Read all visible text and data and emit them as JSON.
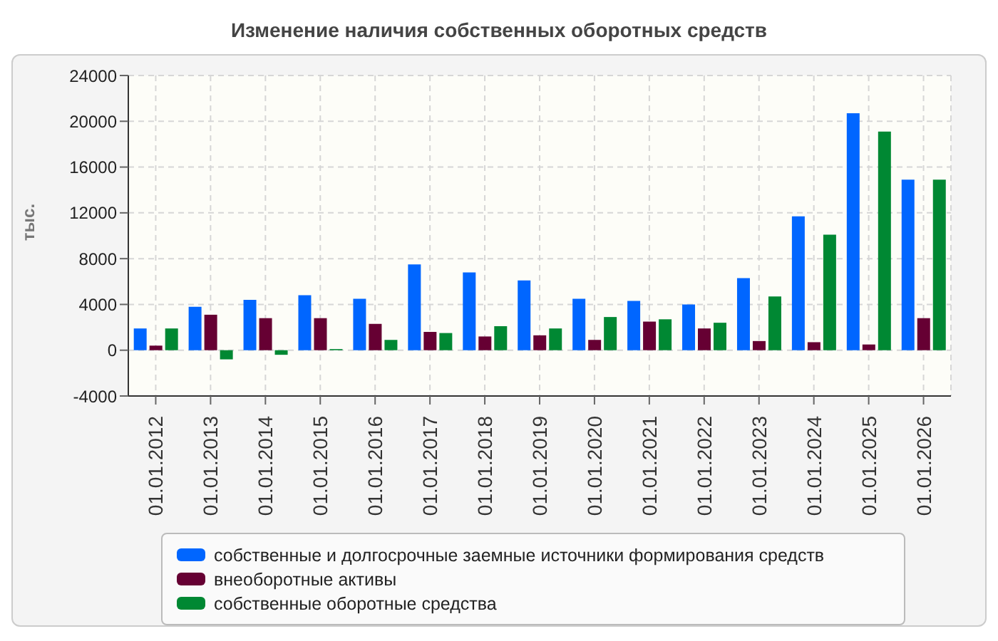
{
  "chart_data": {
    "type": "bar",
    "title": "Изменение наличия собственных оборотных средств",
    "ylabel": "тыс.",
    "categories": [
      "01.01.2012",
      "01.01.2013",
      "01.01.2014",
      "01.01.2015",
      "01.01.2016",
      "01.01.2017",
      "01.01.2018",
      "01.01.2019",
      "01.01.2020",
      "01.01.2021",
      "01.01.2022",
      "01.01.2023",
      "01.01.2024",
      "01.01.2025",
      "01.01.2026"
    ],
    "series": [
      {
        "name": "собственные и долгосрочные заемные источники формирования средств",
        "color": "#0066ff",
        "values": [
          1900,
          3800,
          4400,
          4800,
          4500,
          7500,
          6800,
          6100,
          4500,
          4300,
          4000,
          6300,
          11700,
          20700,
          14900
        ]
      },
      {
        "name": "внеоборотные активы",
        "color": "#660033",
        "values": [
          400,
          3100,
          2800,
          2800,
          2300,
          1600,
          1200,
          1300,
          900,
          2500,
          1900,
          800,
          700,
          500,
          2800
        ]
      },
      {
        "name": "собственные оборотные средства",
        "color": "#008833",
        "values": [
          1900,
          -800,
          -400,
          100,
          900,
          1500,
          2100,
          1900,
          2900,
          2700,
          2400,
          4700,
          10100,
          19100,
          14900
        ]
      }
    ],
    "ylim": [
      -4000,
      24000
    ],
    "yticks": [
      -4000,
      0,
      4000,
      8000,
      12000,
      16000,
      20000,
      24000
    ],
    "grid": true,
    "legend": "bottom"
  }
}
